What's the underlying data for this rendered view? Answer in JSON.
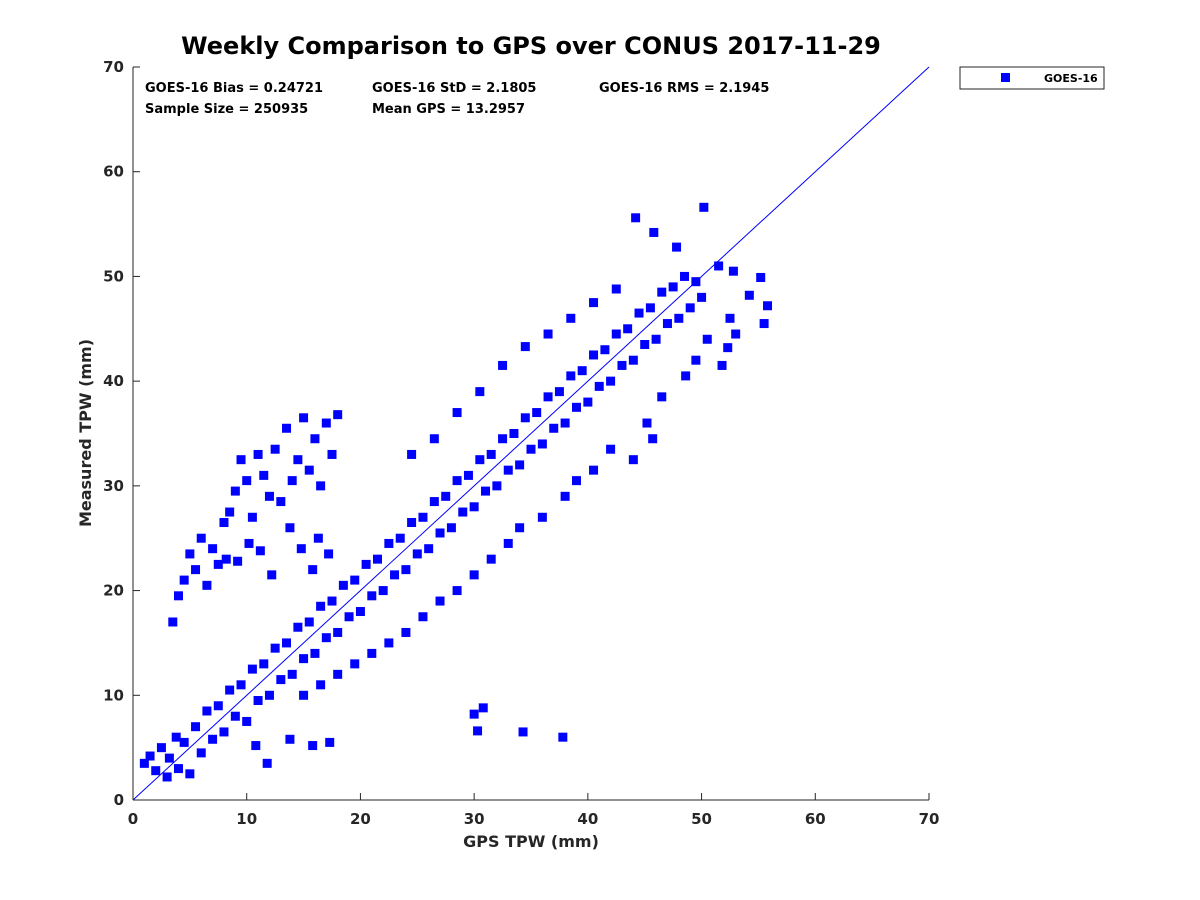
{
  "chart_data": {
    "type": "scatter",
    "title": "Weekly Comparison to GPS over CONUS 2017-11-29",
    "xlabel": "GPS TPW (mm)",
    "ylabel": "Measured TPW (mm)",
    "xlim": [
      0,
      70
    ],
    "ylim": [
      0,
      70
    ],
    "xticks": [
      "0",
      "10",
      "20",
      "30",
      "40",
      "50",
      "60",
      "70"
    ],
    "yticks": [
      "0",
      "10",
      "20",
      "30",
      "40",
      "50",
      "60",
      "70"
    ],
    "grid": false,
    "legend_position": "outside-top-right",
    "reference_line": {
      "x": [
        0,
        70
      ],
      "y": [
        0,
        70
      ],
      "color": "#0000ff"
    },
    "series_color": "#0000ff",
    "stats": [
      {
        "label": "GOES-16 Bias = 0.24721"
      },
      {
        "label": "GOES-16 StD = 2.1805"
      },
      {
        "label": "GOES-16 RMS = 2.1945"
      },
      {
        "label": "Sample Size = 250935"
      },
      {
        "label": "Mean GPS = 13.2957"
      }
    ],
    "series": [
      {
        "name": "GOES-16",
        "marker": "square",
        "color": "#0000ff",
        "points": [
          [
            1.0,
            3.5
          ],
          [
            1.5,
            4.2
          ],
          [
            2.0,
            2.8
          ],
          [
            2.5,
            5.0
          ],
          [
            3.0,
            2.2
          ],
          [
            3.2,
            4.0
          ],
          [
            3.8,
            6.0
          ],
          [
            4.0,
            3.0
          ],
          [
            4.5,
            5.5
          ],
          [
            5.0,
            2.5
          ],
          [
            5.5,
            7.0
          ],
          [
            6.0,
            4.5
          ],
          [
            6.5,
            8.5
          ],
          [
            7.0,
            5.8
          ],
          [
            7.5,
            9.0
          ],
          [
            8.0,
            6.5
          ],
          [
            8.5,
            10.5
          ],
          [
            9.0,
            8.0
          ],
          [
            9.5,
            11.0
          ],
          [
            10.0,
            7.5
          ],
          [
            10.5,
            12.5
          ],
          [
            11.0,
            9.5
          ],
          [
            11.5,
            13.0
          ],
          [
            12.0,
            10.0
          ],
          [
            12.5,
            14.5
          ],
          [
            13.0,
            11.5
          ],
          [
            13.5,
            15.0
          ],
          [
            14.0,
            12.0
          ],
          [
            14.5,
            16.5
          ],
          [
            15.0,
            13.5
          ],
          [
            15.5,
            17.0
          ],
          [
            16.0,
            14.0
          ],
          [
            16.5,
            18.5
          ],
          [
            17.0,
            15.5
          ],
          [
            17.5,
            19.0
          ],
          [
            18.0,
            16.0
          ],
          [
            18.5,
            20.5
          ],
          [
            19.0,
            17.5
          ],
          [
            19.5,
            21.0
          ],
          [
            20.0,
            18.0
          ],
          [
            20.5,
            22.5
          ],
          [
            21.0,
            19.5
          ],
          [
            21.5,
            23.0
          ],
          [
            22.0,
            20.0
          ],
          [
            22.5,
            24.5
          ],
          [
            23.0,
            21.5
          ],
          [
            23.5,
            25.0
          ],
          [
            24.0,
            22.0
          ],
          [
            24.5,
            26.5
          ],
          [
            25.0,
            23.5
          ],
          [
            25.5,
            27.0
          ],
          [
            26.0,
            24.0
          ],
          [
            26.5,
            28.5
          ],
          [
            27.0,
            25.5
          ],
          [
            27.5,
            29.0
          ],
          [
            28.0,
            26.0
          ],
          [
            28.5,
            30.5
          ],
          [
            29.0,
            27.5
          ],
          [
            29.5,
            31.0
          ],
          [
            30.0,
            28.0
          ],
          [
            30.5,
            32.5
          ],
          [
            31.0,
            29.5
          ],
          [
            31.5,
            33.0
          ],
          [
            32.0,
            30.0
          ],
          [
            32.5,
            34.5
          ],
          [
            33.0,
            31.5
          ],
          [
            33.5,
            35.0
          ],
          [
            34.0,
            32.0
          ],
          [
            34.5,
            36.5
          ],
          [
            35.0,
            33.5
          ],
          [
            35.5,
            37.0
          ],
          [
            36.0,
            34.0
          ],
          [
            36.5,
            38.5
          ],
          [
            37.0,
            35.5
          ],
          [
            37.5,
            39.0
          ],
          [
            38.0,
            36.0
          ],
          [
            38.5,
            40.5
          ],
          [
            39.0,
            37.5
          ],
          [
            39.5,
            41.0
          ],
          [
            40.0,
            38.0
          ],
          [
            40.5,
            42.5
          ],
          [
            41.0,
            39.5
          ],
          [
            41.5,
            43.0
          ],
          [
            42.0,
            40.0
          ],
          [
            42.5,
            44.5
          ],
          [
            43.0,
            41.5
          ],
          [
            43.5,
            45.0
          ],
          [
            44.0,
            42.0
          ],
          [
            44.5,
            46.5
          ],
          [
            45.0,
            43.5
          ],
          [
            45.5,
            47.0
          ],
          [
            46.0,
            44.0
          ],
          [
            46.5,
            48.5
          ],
          [
            47.0,
            45.5
          ],
          [
            47.5,
            49.0
          ],
          [
            48.0,
            46.0
          ],
          [
            48.5,
            50.0
          ],
          [
            49.0,
            47.0
          ],
          [
            49.5,
            49.5
          ],
          [
            50.0,
            48.0
          ],
          [
            3.5,
            17.0
          ],
          [
            4.0,
            19.5
          ],
          [
            4.5,
            21.0
          ],
          [
            5.0,
            23.5
          ],
          [
            5.5,
            22.0
          ],
          [
            6.0,
            25.0
          ],
          [
            6.5,
            20.5
          ],
          [
            7.0,
            24.0
          ],
          [
            7.5,
            22.5
          ],
          [
            8.0,
            26.5
          ],
          [
            8.5,
            27.5
          ],
          [
            9.0,
            29.5
          ],
          [
            9.5,
            32.5
          ],
          [
            10.0,
            30.5
          ],
          [
            10.5,
            27.0
          ],
          [
            11.0,
            33.0
          ],
          [
            11.5,
            31.0
          ],
          [
            12.0,
            29.0
          ],
          [
            12.5,
            33.5
          ],
          [
            13.0,
            28.5
          ],
          [
            13.5,
            35.5
          ],
          [
            14.0,
            30.5
          ],
          [
            14.5,
            32.5
          ],
          [
            15.0,
            36.5
          ],
          [
            15.5,
            31.5
          ],
          [
            16.0,
            34.5
          ],
          [
            16.5,
            30.0
          ],
          [
            17.0,
            36.0
          ],
          [
            17.5,
            33.0
          ],
          [
            18.0,
            36.8
          ],
          [
            13.8,
            26.0
          ],
          [
            14.8,
            24.0
          ],
          [
            15.8,
            22.0
          ],
          [
            16.3,
            25.0
          ],
          [
            17.2,
            23.5
          ],
          [
            12.2,
            21.5
          ],
          [
            11.2,
            23.8
          ],
          [
            10.2,
            24.5
          ],
          [
            9.2,
            22.8
          ],
          [
            8.2,
            23.0
          ],
          [
            30.0,
            8.2
          ],
          [
            30.8,
            8.8
          ],
          [
            30.3,
            6.6
          ],
          [
            34.3,
            6.5
          ],
          [
            37.8,
            6.0
          ],
          [
            11.8,
            3.5
          ],
          [
            10.8,
            5.2
          ],
          [
            13.8,
            5.8
          ],
          [
            15.8,
            5.2
          ],
          [
            17.3,
            5.5
          ],
          [
            44.2,
            55.6
          ],
          [
            50.2,
            56.6
          ],
          [
            45.8,
            54.2
          ],
          [
            47.8,
            52.8
          ],
          [
            51.5,
            51.0
          ],
          [
            52.8,
            50.5
          ],
          [
            55.2,
            49.9
          ],
          [
            55.8,
            47.2
          ],
          [
            55.5,
            45.5
          ],
          [
            54.2,
            48.2
          ],
          [
            52.5,
            46.0
          ],
          [
            53.0,
            44.5
          ],
          [
            52.3,
            43.2
          ],
          [
            50.5,
            44.0
          ],
          [
            51.8,
            41.5
          ],
          [
            49.5,
            42.0
          ],
          [
            48.6,
            40.5
          ],
          [
            46.5,
            38.5
          ],
          [
            45.2,
            36.0
          ],
          [
            45.7,
            34.5
          ],
          [
            44.0,
            32.5
          ],
          [
            42.0,
            33.5
          ],
          [
            40.5,
            31.5
          ],
          [
            39.0,
            30.5
          ],
          [
            38.0,
            29.0
          ],
          [
            36.0,
            27.0
          ],
          [
            34.0,
            26.0
          ],
          [
            33.0,
            24.5
          ],
          [
            31.5,
            23.0
          ],
          [
            30.0,
            21.5
          ],
          [
            28.5,
            20.0
          ],
          [
            27.0,
            19.0
          ],
          [
            25.5,
            17.5
          ],
          [
            24.0,
            16.0
          ],
          [
            22.5,
            15.0
          ],
          [
            21.0,
            14.0
          ],
          [
            19.5,
            13.0
          ],
          [
            18.0,
            12.0
          ],
          [
            16.5,
            11.0
          ],
          [
            15.0,
            10.0
          ],
          [
            32.5,
            41.5
          ],
          [
            34.5,
            43.3
          ],
          [
            36.5,
            44.5
          ],
          [
            38.5,
            46.0
          ],
          [
            40.5,
            47.5
          ],
          [
            42.5,
            48.8
          ],
          [
            30.5,
            39.0
          ],
          [
            28.5,
            37.0
          ],
          [
            26.5,
            34.5
          ],
          [
            24.5,
            33.0
          ]
        ]
      }
    ]
  }
}
